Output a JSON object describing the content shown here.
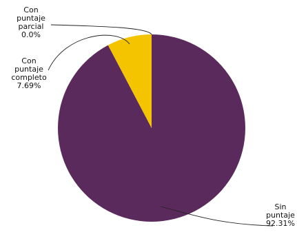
{
  "chart_data": {
    "type": "pie",
    "title": "",
    "start_angle_deg": 0,
    "direction": "clockwise",
    "slices": [
      {
        "label_lines": [
          "Sin",
          "puntaje",
          "92.31%"
        ],
        "value": 92.31,
        "color": "#5b2a5d"
      },
      {
        "label_lines": [
          "Con",
          "puntaje",
          "completo",
          "7.69%"
        ],
        "value": 7.69,
        "color": "#f5c400"
      },
      {
        "label_lines": [
          "Con",
          "puntaje",
          "parcial",
          "0.0%"
        ],
        "value": 0.0,
        "color": "#f5c400"
      }
    ]
  }
}
